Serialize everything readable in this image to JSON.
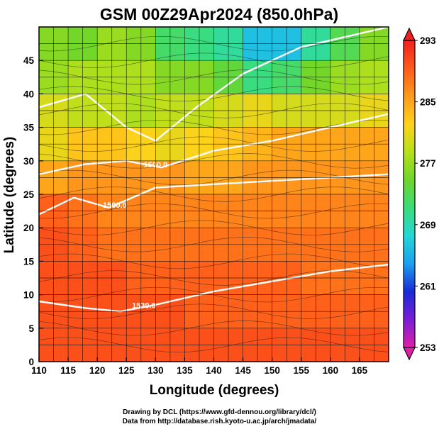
{
  "chart_data": {
    "type": "heatmap",
    "title": "GSM 00Z29Apr2024 (850.0hPa)",
    "xlabel": "Longitude (degrees)",
    "ylabel": "Latitude  (degrees)",
    "xlim": [
      110,
      170
    ],
    "ylim": [
      0,
      50
    ],
    "x_ticks": [
      110,
      115,
      120,
      125,
      130,
      135,
      140,
      145,
      150,
      155,
      160,
      165
    ],
    "y_ticks": [
      0,
      5,
      10,
      15,
      20,
      25,
      30,
      35,
      40,
      45
    ],
    "grid": true,
    "colorbar": {
      "range": [
        253,
        293
      ],
      "ticks": [
        253,
        261,
        269,
        277,
        285,
        293
      ],
      "colors": [
        "#e01ea8",
        "#7a1ed8",
        "#1a2ad8",
        "#1aa0f0",
        "#22d8d8",
        "#3adc7a",
        "#6ed62a",
        "#b6e01a",
        "#ffd21a",
        "#ff9a1a",
        "#ff5a1a",
        "#f02020"
      ]
    },
    "temperature_field": {
      "description_units": "K",
      "latitudes": [
        47.5,
        42.5,
        37.5,
        32.5,
        27.5,
        22.5,
        17.5,
        12.5,
        7.5,
        2.5
      ],
      "longitudes": [
        112.5,
        117.5,
        122.5,
        127.5,
        132.5,
        137.5,
        142.5,
        147.5,
        152.5,
        157.5,
        162.5,
        167.5
      ],
      "values": [
        [
          276,
          275,
          277,
          276,
          272,
          271,
          270,
          266,
          266,
          270,
          273,
          276
        ],
        [
          277,
          278,
          278,
          278,
          276,
          276,
          274,
          271,
          272,
          275,
          277,
          278
        ],
        [
          280,
          279,
          279,
          278,
          279,
          279,
          280,
          281,
          280,
          280,
          280,
          281
        ],
        [
          281,
          283,
          283,
          282,
          281,
          282,
          283,
          284,
          285,
          285,
          285,
          285
        ],
        [
          285,
          286,
          286,
          286,
          286,
          285,
          285,
          286,
          286,
          286,
          286,
          286
        ],
        [
          289,
          288,
          287,
          287,
          287,
          287,
          287,
          287,
          287,
          287,
          287,
          287
        ],
        [
          290,
          289,
          288,
          288,
          288,
          288,
          288,
          288,
          288,
          288,
          288,
          288
        ],
        [
          290,
          290,
          290,
          289,
          289,
          289,
          289,
          289,
          289,
          288,
          288,
          288
        ],
        [
          290,
          290,
          290,
          290,
          290,
          289,
          289,
          289,
          289,
          289,
          289,
          289
        ],
        [
          290,
          290,
          290,
          290,
          290,
          290,
          290,
          290,
          290,
          290,
          290,
          290
        ]
      ]
    },
    "contour_labels": [
      {
        "text": "1500.0",
        "lon": 130,
        "lat": 29
      },
      {
        "text": "1500.0",
        "lon": 123,
        "lat": 23
      },
      {
        "text": "1530.0",
        "lon": 128,
        "lat": 8
      }
    ],
    "annotations": {
      "credit_line1": "Drawing by DCL (https://www.gfd-dennou.org/library/dcl/)",
      "credit_line2": "Data from http://database.rish.kyoto-u.ac.jp/arch/jmadata/"
    }
  }
}
